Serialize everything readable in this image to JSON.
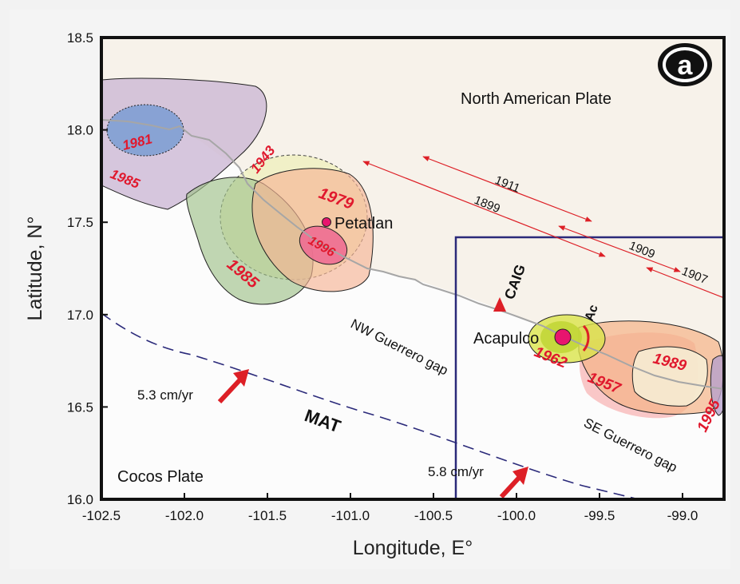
{
  "panel_label": "a",
  "axes": {
    "x_title": "Longitude, E°",
    "y_title": "Latitude, N°",
    "x_ticks": [
      "-102.5",
      "-102.0",
      "-101.5",
      "-101.0",
      "-100.5",
      "-100.0",
      "-99.5",
      "-99.0"
    ],
    "y_ticks": [
      "18.5",
      "18.0",
      "17.5",
      "17.0",
      "16.5",
      "16.0"
    ],
    "xlim": [
      -102.5,
      -98.75
    ],
    "ylim": [
      16.0,
      18.5
    ]
  },
  "regions": {
    "north_plate": "North American Plate",
    "cocos_plate": "Cocos Plate",
    "nw_gap": "NW Guerrero gap",
    "se_gap": "SE Guerrero gap",
    "trench": "MAT"
  },
  "places": {
    "petatlan": "Petatlan",
    "acapulco": "Acapulco",
    "caig": "CAIG",
    "ac": "Ac"
  },
  "plate_rates": {
    "west": "5.3 cm/yr",
    "east": "5.8 cm/yr"
  },
  "earthquakes": {
    "y1981": "1981",
    "y1985_west": "1985",
    "y1943": "1943",
    "y1979": "1979",
    "y1996": "1996",
    "y1985_center": "1985",
    "y1962": "1962",
    "y1957": "1957",
    "y1989": "1989",
    "y1995": "1995"
  },
  "rupture_years": {
    "y1911": "1911",
    "y1899": "1899",
    "y1909": "1909",
    "y1907": "1907"
  },
  "colors": {
    "quake_label": "#e0182d",
    "arrow_red": "#dd1f26",
    "frame": "#111111",
    "inset_box": "#2b2a7a",
    "trench_line": "#2b2a7a",
    "land": "#f7f3ec",
    "ocean": "#f7f7f7"
  }
}
